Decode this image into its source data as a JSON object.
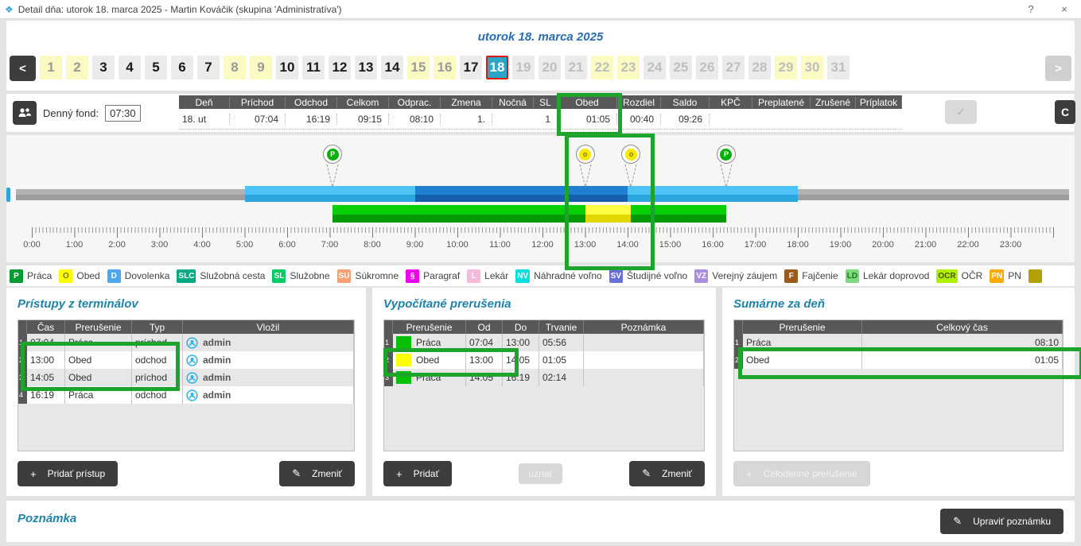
{
  "window": {
    "title": "Detail dňa: utorok 18. marca 2025 -  Martin Kováčik  (skupina 'Administratíva')",
    "help": "?",
    "close": "×"
  },
  "calendar": {
    "date_title": "utorok 18. marca 2025",
    "prev": "<",
    "next": ">",
    "days": [
      {
        "n": "1",
        "state": "weekend"
      },
      {
        "n": "2",
        "state": "weekend"
      },
      {
        "n": "3",
        "state": "work"
      },
      {
        "n": "4",
        "state": "work"
      },
      {
        "n": "5",
        "state": "work"
      },
      {
        "n": "6",
        "state": "work"
      },
      {
        "n": "7",
        "state": "work"
      },
      {
        "n": "8",
        "state": "weekend"
      },
      {
        "n": "9",
        "state": "weekend"
      },
      {
        "n": "10",
        "state": "work"
      },
      {
        "n": "11",
        "state": "work"
      },
      {
        "n": "12",
        "state": "work"
      },
      {
        "n": "13",
        "state": "work"
      },
      {
        "n": "14",
        "state": "work"
      },
      {
        "n": "15",
        "state": "weekend"
      },
      {
        "n": "16",
        "state": "weekend"
      },
      {
        "n": "17",
        "state": "work"
      },
      {
        "n": "18",
        "state": "selected"
      },
      {
        "n": "19",
        "state": "future"
      },
      {
        "n": "20",
        "state": "future"
      },
      {
        "n": "21",
        "state": "future"
      },
      {
        "n": "22",
        "state": "future-weekend"
      },
      {
        "n": "23",
        "state": "future-weekend"
      },
      {
        "n": "24",
        "state": "future"
      },
      {
        "n": "25",
        "state": "future"
      },
      {
        "n": "26",
        "state": "future"
      },
      {
        "n": "27",
        "state": "future"
      },
      {
        "n": "28",
        "state": "future"
      },
      {
        "n": "29",
        "state": "future-weekend"
      },
      {
        "n": "30",
        "state": "future-weekend"
      },
      {
        "n": "31",
        "state": "future"
      }
    ]
  },
  "fond": {
    "label": "Denný fond:",
    "value": "07:30"
  },
  "summary": {
    "columns": [
      "Deň",
      "Príchod",
      "Odchod",
      "Celkom",
      "Odprac.",
      "Zmena",
      "Nočná",
      "SL",
      "Obed",
      "Rozdiel",
      "Saldo",
      "KPČ",
      "Preplatené",
      "Zrušené",
      "Príplatok"
    ],
    "values": [
      "18. ut",
      "07:04",
      "16:19",
      "09:15",
      "08:10",
      "1.",
      "",
      "1",
      "01:05",
      "00:40",
      "09:26",
      "",
      "",
      "",
      ""
    ],
    "check_glyph": "✓",
    "refresh_glyph": "C"
  },
  "timeline": {
    "hours": [
      "0:00",
      "1:00",
      "2:00",
      "3:00",
      "4:00",
      "5:00",
      "6:00",
      "7:00",
      "8:00",
      "9:00",
      "10:00",
      "11:00",
      "12:00",
      "13:00",
      "14:00",
      "15:00",
      "16:00",
      "17:00",
      "18:00",
      "19:00",
      "20:00",
      "21:00",
      "22:00",
      "23:00"
    ],
    "pins": [
      {
        "time": 7.067,
        "code": "P",
        "bg": "#05b005",
        "fg": "#ffffff"
      },
      {
        "time": 13.0,
        "code": "o",
        "bg": "#f7e800",
        "fg": "#8a7a00"
      },
      {
        "time": 14.083,
        "code": "o",
        "bg": "#f7e800",
        "fg": "#8a7a00"
      },
      {
        "time": 16.317,
        "code": "P",
        "bg": "#05b005",
        "fg": "#ffffff"
      }
    ],
    "segments": [
      {
        "from": 5.0,
        "to": 18.0,
        "cls": "bar-lightblue"
      },
      {
        "from": 9.0,
        "to": 14.0,
        "cls": "bar-darkblue"
      },
      {
        "from": 7.067,
        "to": 16.317,
        "cls": "bar-green"
      },
      {
        "from": 13.0,
        "to": 14.083,
        "cls": "bar-yellow"
      }
    ]
  },
  "legend": {
    "items": [
      {
        "code": "P",
        "label": "Práca",
        "bg": "#019b33",
        "fg": "#ffffff"
      },
      {
        "code": "O",
        "label": "Obed",
        "bg": "#ffff00",
        "fg": "#777700"
      },
      {
        "code": "D",
        "label": "Dovolenka",
        "bg": "#4da6f0",
        "fg": "#ffffff"
      },
      {
        "code": "SLC",
        "label": "Služobná cesta",
        "bg": "#00a884",
        "fg": "#ffffff"
      },
      {
        "code": "SL",
        "label": "Služobne",
        "bg": "#00cc66",
        "fg": "#ffffff"
      },
      {
        "code": "SU",
        "label": "Súkromne",
        "bg": "#f5a173",
        "fg": "#ffffff"
      },
      {
        "code": "§",
        "label": "Paragraf",
        "bg": "#ee00ee",
        "fg": "#ffffff"
      },
      {
        "code": "L",
        "label": "Lekár",
        "bg": "#f6b8dd",
        "fg": "#ffffff"
      },
      {
        "code": "NV",
        "label": "Náhradné voľno",
        "bg": "#00dede",
        "fg": "#ffffff"
      },
      {
        "code": "SV",
        "label": "Študijné voľno",
        "bg": "#6670d8",
        "fg": "#ffffff"
      },
      {
        "code": "VZ",
        "label": "Verejný záujem",
        "bg": "#a88fe0",
        "fg": "#ffffff"
      },
      {
        "code": "F",
        "label": "Fajčenie",
        "bg": "#9b5a1e",
        "fg": "#ffffff"
      },
      {
        "code": "LD",
        "label": "Lekár doprovod",
        "bg": "#7fd87f",
        "fg": "#1a7a1a"
      },
      {
        "code": "OCR",
        "label": "OČR",
        "bg": "#aef000",
        "fg": "#555500"
      },
      {
        "code": "PN",
        "label": "PN",
        "bg": "#ffaa00",
        "fg": "#ffffff"
      },
      {
        "code": "",
        "label": "",
        "bg": "#b0a000",
        "fg": "#b0a000"
      }
    ]
  },
  "panels": {
    "terminals": {
      "title": "Prístupy z terminálov",
      "columns": [
        "Čas",
        "Prerušenie",
        "Typ",
        "Vložil"
      ],
      "rows": [
        {
          "num": "1",
          "cas": "07:04",
          "prerusenie": "Práca",
          "typ": "príchod",
          "vlozil": "admin"
        },
        {
          "num": "2",
          "cas": "13:00",
          "prerusenie": "Obed",
          "typ": "odchod",
          "vlozil": "admin"
        },
        {
          "num": "3",
          "cas": "14:05",
          "prerusenie": "Obed",
          "typ": "príchod",
          "vlozil": "admin"
        },
        {
          "num": "4",
          "cas": "16:19",
          "prerusenie": "Práca",
          "typ": "odchod",
          "vlozil": "admin"
        }
      ],
      "btn_add": "Pridať prístup",
      "btn_change": "Zmeniť"
    },
    "computed": {
      "title": "Vypočítané prerušenia",
      "columns": [
        "Prerušenie",
        "Od",
        "Do",
        "Trvanie",
        "Poznámka"
      ],
      "rows": [
        {
          "num": "1",
          "swatch": "#06c006",
          "prerusenie": "Práca",
          "od": "07:04",
          "do": "13:00",
          "trvanie": "05:56",
          "poznamka": ""
        },
        {
          "num": "2",
          "swatch": "#ffff00",
          "prerusenie": "Obed",
          "od": "13:00",
          "do": "14:05",
          "trvanie": "01:05",
          "poznamka": ""
        },
        {
          "num": "3",
          "swatch": "#06c006",
          "prerusenie": "Práca",
          "od": "14:05",
          "do": "16:19",
          "trvanie": "02:14",
          "poznamka": ""
        }
      ],
      "btn_add": "Pridať",
      "btn_uznat": "uznať",
      "btn_change": "Zmeniť"
    },
    "daysum": {
      "title": "Sumárne za deň",
      "columns": [
        "Prerušenie",
        "Celkový čas"
      ],
      "rows": [
        {
          "num": "1",
          "prerusenie": "Práca",
          "celkovy_cas": "08:10"
        },
        {
          "num": "2",
          "prerusenie": "Obed",
          "celkovy_cas": "01:05"
        }
      ],
      "btn_fullday": "Celodenné prerušenie"
    }
  },
  "note": {
    "title": "Poznámka",
    "btn_edit": "Upraviť poznámku"
  }
}
